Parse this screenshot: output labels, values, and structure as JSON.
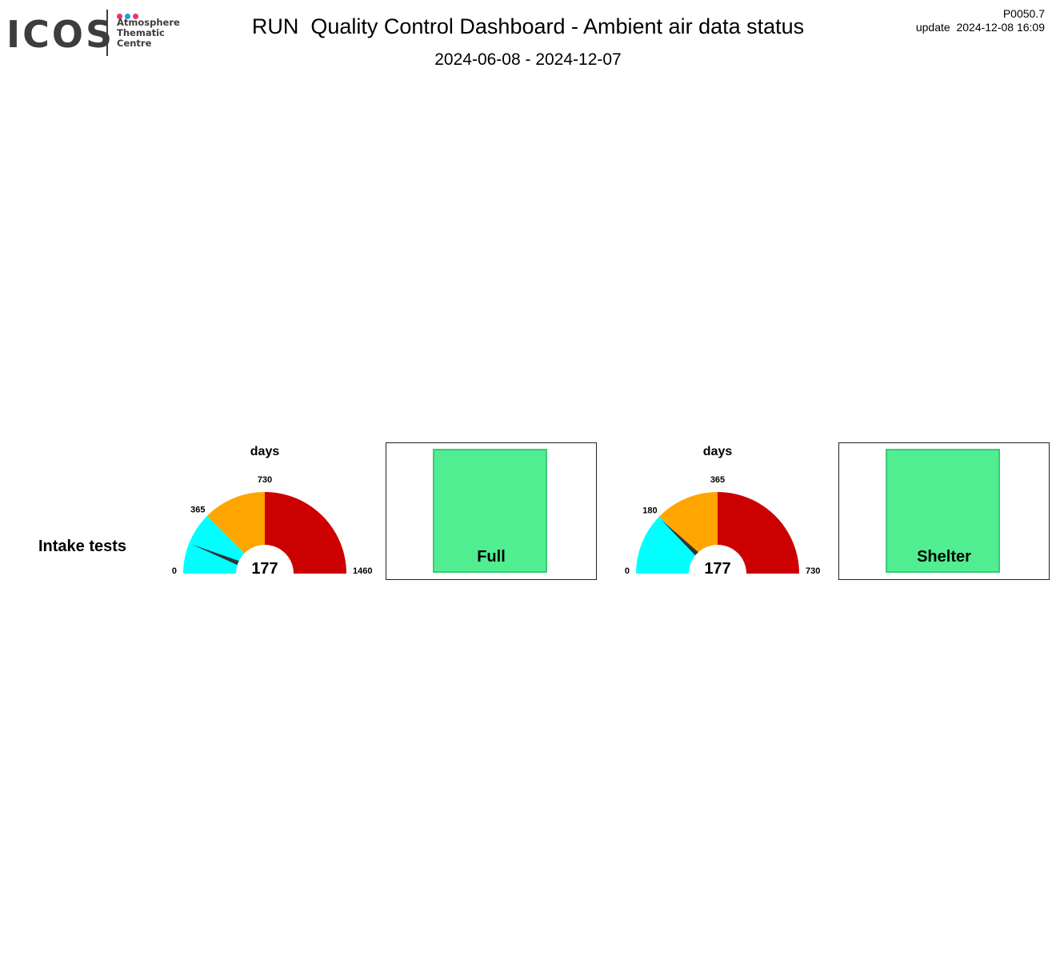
{
  "logo": {
    "word": "ICOS",
    "lines": [
      "Atmosphere",
      "Thematic",
      "Centre"
    ],
    "dot_colors": [
      "#e8336d",
      "#1e9be0",
      "#e8336d"
    ]
  },
  "header": {
    "title": "RUN  Quality Control Dashboard - Ambient air data status",
    "period": "2024-06-08 - 2024-12-07",
    "code": "P0050.7",
    "update": "update  2024-12-08 16:09"
  },
  "rows": [
    {
      "label": "Intake tests"
    }
  ],
  "chart_data": [
    {
      "type": "gauge",
      "title": "days",
      "value": 177,
      "min": 0,
      "max": 1460,
      "ticks": [
        0,
        365,
        730,
        1460
      ],
      "bands": [
        {
          "from": 0,
          "to": 365,
          "color": "#00ffff"
        },
        {
          "from": 365,
          "to": 730,
          "color": "#ffa500"
        },
        {
          "from": 730,
          "to": 1460,
          "color": "#cc0000"
        }
      ]
    },
    {
      "type": "status",
      "label": "Full",
      "color": "#50ee90"
    },
    {
      "type": "gauge",
      "title": "days",
      "value": 177,
      "min": 0,
      "max": 730,
      "ticks": [
        0,
        180,
        365,
        730
      ],
      "bands": [
        {
          "from": 0,
          "to": 180,
          "color": "#00ffff"
        },
        {
          "from": 180,
          "to": 365,
          "color": "#ffa500"
        },
        {
          "from": 365,
          "to": 730,
          "color": "#cc0000"
        }
      ]
    },
    {
      "type": "status",
      "label": "Shelter",
      "color": "#50ee90"
    }
  ]
}
